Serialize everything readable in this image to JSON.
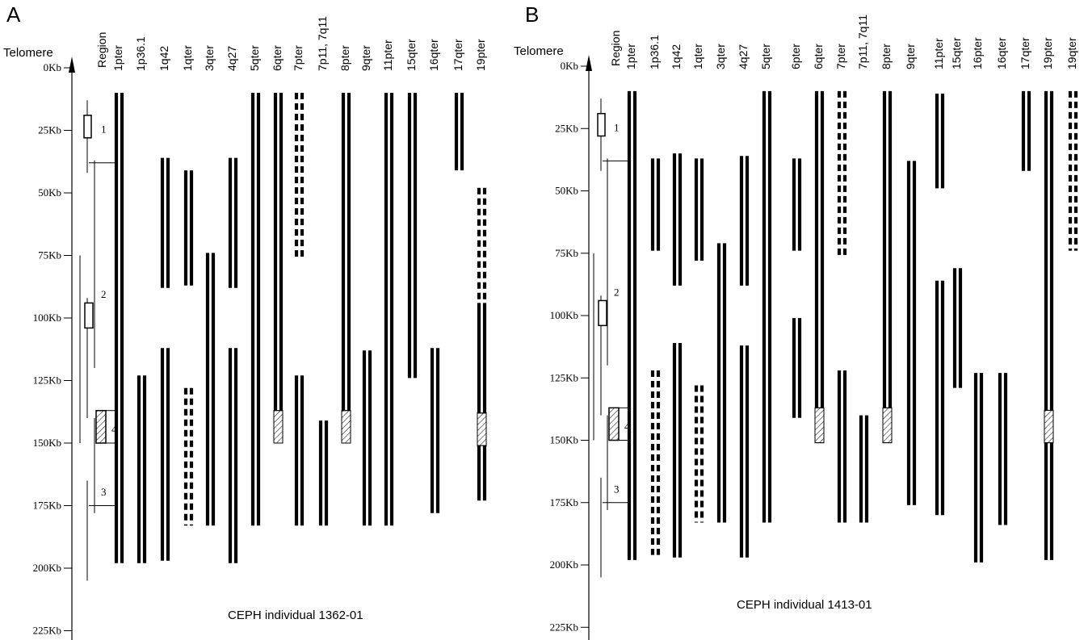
{
  "panels": [
    {
      "letter": "A",
      "axis_title": "Telomere",
      "region_label": "Region",
      "caption": "CEPH individual 1362-01",
      "ticks": [
        "0Kb",
        "25Kb",
        "50Kb",
        "75Kb",
        "100Kb",
        "125Kb",
        "150Kb",
        "175Kb",
        "200Kb",
        "225Kb"
      ],
      "region_numbers": [
        "1",
        "2",
        "4",
        "3"
      ],
      "columns": [
        {
          "label": "1pter",
          "segments": [
            {
              "from": 10,
              "to": 198,
              "style": "solid"
            }
          ]
        },
        {
          "label": "1p36.1",
          "segments": [
            {
              "from": 123,
              "to": 198,
              "style": "solid"
            }
          ]
        },
        {
          "label": "1q42",
          "segments": [
            {
              "from": 36,
              "to": 88,
              "style": "solid"
            },
            {
              "from": 112,
              "to": 197,
              "style": "solid"
            }
          ]
        },
        {
          "label": "1qter",
          "segments": [
            {
              "from": 41,
              "to": 87,
              "style": "solid"
            },
            {
              "from": 128,
              "to": 183,
              "style": "dashed"
            }
          ]
        },
        {
          "label": "3qter",
          "segments": [
            {
              "from": 74,
              "to": 183,
              "style": "solid"
            }
          ]
        },
        {
          "label": "4q27",
          "segments": [
            {
              "from": 36,
              "to": 88,
              "style": "solid"
            },
            {
              "from": 112,
              "to": 198,
              "style": "solid"
            }
          ]
        },
        {
          "label": "5qter",
          "segments": [
            {
              "from": 10,
              "to": 183,
              "style": "solid"
            }
          ]
        },
        {
          "label": "6qter",
          "segments": [
            {
              "from": 10,
              "to": 150,
              "style": "solid",
              "hatch": [
                137,
                150
              ]
            }
          ]
        },
        {
          "label": "7pter",
          "segments": [
            {
              "from": 10,
              "to": 77,
              "style": "dashed"
            },
            {
              "from": 123,
              "to": 183,
              "style": "solid"
            }
          ]
        },
        {
          "label": "7p11, 7q11",
          "segments": [
            {
              "from": 141,
              "to": 183,
              "style": "solid"
            }
          ]
        },
        {
          "label": "8pter",
          "segments": [
            {
              "from": 10,
              "to": 150,
              "style": "solid",
              "hatch": [
                137,
                150
              ]
            }
          ]
        },
        {
          "label": "9qter",
          "segments": [
            {
              "from": 113,
              "to": 183,
              "style": "solid"
            }
          ]
        },
        {
          "label": "11pter",
          "segments": [
            {
              "from": 10,
              "to": 183,
              "style": "solid"
            }
          ]
        },
        {
          "label": "15qter",
          "segments": [
            {
              "from": 10,
              "to": 124,
              "style": "solid"
            }
          ]
        },
        {
          "label": "16qter",
          "segments": [
            {
              "from": 112,
              "to": 178,
              "style": "solid"
            }
          ]
        },
        {
          "label": "17qter",
          "segments": [
            {
              "from": 10,
              "to": 41,
              "style": "solid"
            }
          ]
        },
        {
          "label": "19pter",
          "segments": [
            {
              "from": 48,
              "to": 94,
              "style": "dashed"
            },
            {
              "from": 94,
              "to": 173,
              "style": "solid",
              "hatch": [
                138,
                151
              ]
            }
          ]
        }
      ]
    },
    {
      "letter": "B",
      "axis_title": "Telomere",
      "region_label": "Region",
      "caption": "CEPH individual 1413-01",
      "ticks": [
        "0Kb",
        "25Kb",
        "50Kb",
        "75Kb",
        "100Kb",
        "125Kb",
        "150Kb",
        "175Kb",
        "200Kb",
        "225Kb"
      ],
      "region_numbers": [
        "1",
        "2",
        "4",
        "3"
      ],
      "columns": [
        {
          "label": "1pter",
          "segments": [
            {
              "from": 10,
              "to": 198,
              "style": "solid"
            }
          ]
        },
        {
          "label": "1p36.1",
          "segments": [
            {
              "from": 37,
              "to": 74,
              "style": "solid"
            },
            {
              "from": 122,
              "to": 196,
              "style": "dashed"
            }
          ]
        },
        {
          "label": "1q42",
          "segments": [
            {
              "from": 35,
              "to": 88,
              "style": "solid"
            },
            {
              "from": 111,
              "to": 197,
              "style": "solid"
            }
          ]
        },
        {
          "label": "1qter",
          "segments": [
            {
              "from": 37,
              "to": 78,
              "style": "solid"
            },
            {
              "from": 128,
              "to": 183,
              "style": "dashed"
            }
          ]
        },
        {
          "label": "3qter",
          "segments": [
            {
              "from": 71,
              "to": 183,
              "style": "solid"
            }
          ]
        },
        {
          "label": "4q27",
          "segments": [
            {
              "from": 36,
              "to": 88,
              "style": "solid"
            },
            {
              "from": 112,
              "to": 197,
              "style": "solid"
            }
          ]
        },
        {
          "label": "5qter",
          "segments": [
            {
              "from": 10,
              "to": 183,
              "style": "solid"
            }
          ]
        },
        {
          "label": "6pter",
          "segments": [
            {
              "from": 37,
              "to": 74,
              "style": "solid"
            },
            {
              "from": 101,
              "to": 141,
              "style": "solid"
            }
          ]
        },
        {
          "label": "6qter",
          "segments": [
            {
              "from": 10,
              "to": 151,
              "style": "solid",
              "hatch": [
                137,
                151
              ]
            }
          ]
        },
        {
          "label": "7pter",
          "segments": [
            {
              "from": 10,
              "to": 77,
              "style": "dashed"
            },
            {
              "from": 122,
              "to": 183,
              "style": "solid"
            }
          ]
        },
        {
          "label": "7p11, 7q11",
          "segments": [
            {
              "from": 140,
              "to": 183,
              "style": "solid"
            }
          ]
        },
        {
          "label": "8pter",
          "segments": [
            {
              "from": 10,
              "to": 151,
              "style": "solid",
              "hatch": [
                137,
                151
              ]
            }
          ]
        },
        {
          "label": "9qter",
          "segments": [
            {
              "from": 38,
              "to": 134,
              "style": "solid"
            },
            {
              "from": 134,
              "to": 176,
              "style": "solid"
            }
          ]
        },
        {
          "label": "11pter",
          "segments": [
            {
              "from": 11,
              "to": 49,
              "style": "solid"
            },
            {
              "from": 86,
              "to": 180,
              "style": "solid"
            }
          ]
        },
        {
          "label": "15qter",
          "segments": [
            {
              "from": 81,
              "to": 129,
              "style": "solid"
            }
          ]
        },
        {
          "label": "16pter",
          "segments": [
            {
              "from": 123,
              "to": 199,
              "style": "solid"
            }
          ]
        },
        {
          "label": "16qter",
          "segments": [
            {
              "from": 123,
              "to": 184,
              "style": "solid"
            }
          ]
        },
        {
          "label": "17qter",
          "segments": [
            {
              "from": 10,
              "to": 42,
              "style": "solid"
            }
          ]
        },
        {
          "label": "19pter",
          "segments": [
            {
              "from": 10,
              "to": 198,
              "style": "solid",
              "hatch": [
                138,
                151
              ]
            }
          ]
        },
        {
          "label": "19qter",
          "segments": [
            {
              "from": 10,
              "to": 74,
              "style": "dashed"
            }
          ]
        }
      ]
    }
  ]
}
